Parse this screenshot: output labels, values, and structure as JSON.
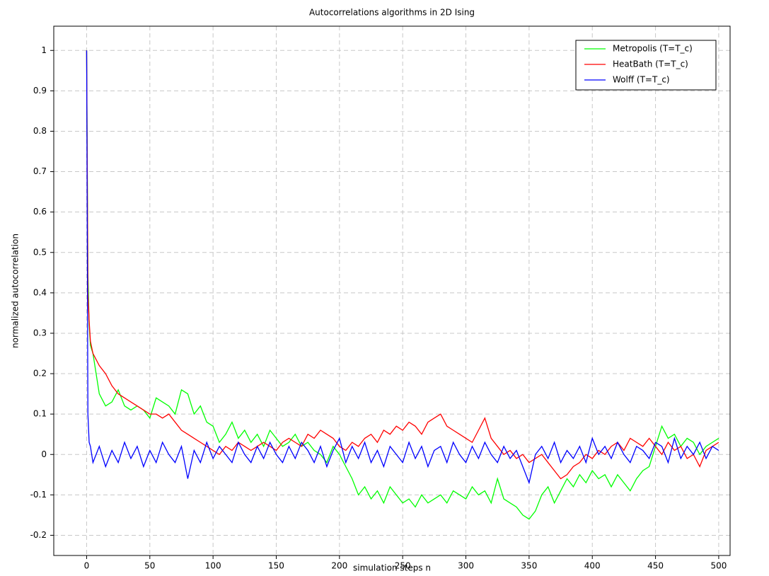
{
  "chart_data": {
    "type": "line",
    "title": "Autocorrelations algorithms in 2D Ising",
    "xlabel": "simulation steps n",
    "ylabel": "normalized autocorrelation",
    "xlim": [
      -26,
      509
    ],
    "ylim": [
      -0.25,
      1.06
    ],
    "xticks": [
      0,
      50,
      100,
      150,
      200,
      250,
      300,
      350,
      400,
      450,
      500
    ],
    "yticks": [
      -0.2,
      -0.1,
      0,
      0.1,
      0.2,
      0.3,
      0.4,
      0.5,
      0.6,
      0.7,
      0.8,
      0.9,
      1
    ],
    "grid": true,
    "legend": "upper right",
    "x": [
      0,
      1,
      2,
      3,
      5,
      10,
      15,
      20,
      25,
      30,
      35,
      40,
      45,
      50,
      55,
      60,
      65,
      70,
      75,
      80,
      85,
      90,
      95,
      100,
      105,
      110,
      115,
      120,
      125,
      130,
      135,
      140,
      145,
      150,
      155,
      160,
      165,
      170,
      175,
      180,
      185,
      190,
      195,
      200,
      205,
      210,
      215,
      220,
      225,
      230,
      235,
      240,
      245,
      250,
      255,
      260,
      265,
      270,
      275,
      280,
      285,
      290,
      295,
      300,
      305,
      310,
      315,
      320,
      325,
      330,
      335,
      340,
      345,
      350,
      355,
      360,
      365,
      370,
      375,
      380,
      385,
      390,
      395,
      400,
      405,
      410,
      415,
      420,
      425,
      430,
      435,
      440,
      445,
      450,
      455,
      460,
      465,
      470,
      475,
      480,
      485,
      490,
      495,
      500
    ],
    "series": [
      {
        "name": "Metropolis (T=T_c)",
        "color": "#00ff00",
        "values": [
          1,
          0.45,
          0.32,
          0.27,
          0.25,
          0.15,
          0.12,
          0.13,
          0.16,
          0.12,
          0.11,
          0.12,
          0.11,
          0.09,
          0.14,
          0.13,
          0.12,
          0.1,
          0.16,
          0.15,
          0.1,
          0.12,
          0.08,
          0.07,
          0.03,
          0.05,
          0.08,
          0.04,
          0.06,
          0.03,
          0.05,
          0.02,
          0.06,
          0.04,
          0.02,
          0.03,
          0.05,
          0.02,
          0.03,
          0.01,
          0,
          -0.02,
          0.02,
          0,
          -0.03,
          -0.06,
          -0.1,
          -0.08,
          -0.11,
          -0.09,
          -0.12,
          -0.08,
          -0.1,
          -0.12,
          -0.11,
          -0.13,
          -0.1,
          -0.12,
          -0.11,
          -0.1,
          -0.12,
          -0.09,
          -0.1,
          -0.11,
          -0.08,
          -0.1,
          -0.09,
          -0.12,
          -0.06,
          -0.11,
          -0.12,
          -0.13,
          -0.15,
          -0.16,
          -0.14,
          -0.1,
          -0.08,
          -0.12,
          -0.09,
          -0.06,
          -0.08,
          -0.05,
          -0.07,
          -0.04,
          -0.06,
          -0.05,
          -0.08,
          -0.05,
          -0.07,
          -0.09,
          -0.06,
          -0.04,
          -0.03,
          0.02,
          0.07,
          0.04,
          0.05,
          0.02,
          0.04,
          0.03,
          0,
          0.02,
          0.03,
          0.04
        ]
      },
      {
        "name": "HeatBath (T=T_c)",
        "color": "#ff0000",
        "values": [
          1,
          0.4,
          0.33,
          0.28,
          0.25,
          0.22,
          0.2,
          0.17,
          0.15,
          0.14,
          0.13,
          0.12,
          0.11,
          0.1,
          0.1,
          0.09,
          0.1,
          0.08,
          0.06,
          0.05,
          0.04,
          0.03,
          0.02,
          0.01,
          0,
          0.02,
          0.01,
          0.03,
          0.02,
          0.01,
          0.02,
          0.03,
          0.02,
          0.01,
          0.03,
          0.04,
          0.03,
          0.02,
          0.05,
          0.04,
          0.06,
          0.05,
          0.04,
          0.02,
          0.01,
          0.03,
          0.02,
          0.04,
          0.05,
          0.03,
          0.06,
          0.05,
          0.07,
          0.06,
          0.08,
          0.07,
          0.05,
          0.08,
          0.09,
          0.1,
          0.07,
          0.06,
          0.05,
          0.04,
          0.03,
          0.06,
          0.09,
          0.04,
          0.02,
          0,
          0.01,
          -0.01,
          0,
          -0.02,
          -0.01,
          0,
          -0.02,
          -0.04,
          -0.06,
          -0.05,
          -0.03,
          -0.02,
          0,
          -0.01,
          0.01,
          0,
          0.02,
          0.03,
          0.01,
          0.04,
          0.03,
          0.02,
          0.04,
          0.02,
          0,
          0.03,
          0.01,
          0.02,
          -0.01,
          0,
          -0.03,
          0.01,
          0.02,
          0.03
        ]
      },
      {
        "name": "Wolff (T=T_c)",
        "color": "#0000ff",
        "values": [
          1,
          0.1,
          0.03,
          0.02,
          -0.02,
          0.02,
          -0.03,
          0.01,
          -0.02,
          0.03,
          -0.01,
          0.02,
          -0.03,
          0.01,
          -0.02,
          0.03,
          0,
          -0.02,
          0.02,
          -0.06,
          0.01,
          -0.02,
          0.03,
          -0.01,
          0.02,
          0,
          -0.02,
          0.03,
          0,
          -0.02,
          0.02,
          -0.01,
          0.03,
          0,
          -0.02,
          0.02,
          -0.01,
          0.03,
          0.01,
          -0.02,
          0.02,
          -0.03,
          0.01,
          0.04,
          -0.02,
          0.02,
          -0.01,
          0.03,
          -0.02,
          0.01,
          -0.03,
          0.02,
          0,
          -0.02,
          0.03,
          -0.01,
          0.02,
          -0.03,
          0.01,
          0.02,
          -0.02,
          0.03,
          0,
          -0.02,
          0.02,
          -0.01,
          0.03,
          0,
          -0.02,
          0.02,
          -0.01,
          0.01,
          -0.03,
          -0.07,
          0,
          0.02,
          -0.01,
          0.03,
          -0.02,
          0.01,
          -0.01,
          0.02,
          -0.02,
          0.04,
          0,
          0.02,
          -0.01,
          0.03,
          0,
          -0.02,
          0.02,
          0.01,
          -0.01,
          0.03,
          0.02,
          -0.02,
          0.04,
          -0.01,
          0.02,
          0,
          0.03,
          -0.01,
          0.02,
          0.01
        ]
      }
    ]
  }
}
